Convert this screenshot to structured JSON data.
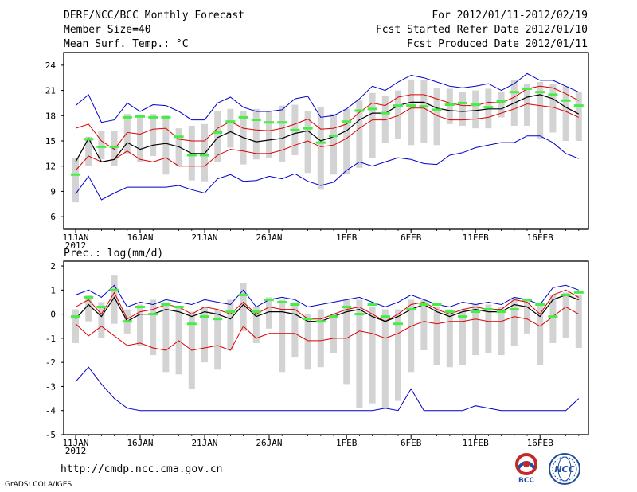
{
  "header": {
    "title": "DERF/NCC/BCC Monthly Forecast",
    "member_size": "Member Size=40",
    "variable": "Mean Surf. Temp.: °C",
    "fcst_period": "For 2012/01/11-2012/02/19",
    "fcst_started": "Fcst Started Refer Date 2012/01/10",
    "fcst_produced": "Fcst Produced Date 2012/01/11"
  },
  "footer": {
    "url": "http://cmdp.ncc.cma.gov.cn",
    "grads_credit": "GrADS: COLA/IGES",
    "logo_bcc_text": "BCC",
    "logo_ncc_text": "NCC"
  },
  "colors": {
    "max_min_line": "#0000cc",
    "spread_line": "#dd0000",
    "mean_line": "#000000",
    "box": "#d3d3d3",
    "ctrl_marker": "#44ee44"
  },
  "chart_data": [
    {
      "type": "line",
      "name": "temperature",
      "ylim": [
        4.5,
        25.5
      ],
      "yticks": [
        6,
        9,
        12,
        15,
        18,
        21,
        24
      ],
      "x_tick_labels": [
        {
          "day": 0,
          "label": "11JAN"
        },
        {
          "day": 5,
          "label": "16JAN"
        },
        {
          "day": 10,
          "label": "21JAN"
        },
        {
          "day": 15,
          "label": "26JAN"
        },
        {
          "day": 21,
          "label": "1FEB"
        },
        {
          "day": 26,
          "label": "6FEB"
        },
        {
          "day": 31,
          "label": "11FEB"
        },
        {
          "day": 36,
          "label": "16FEB"
        }
      ],
      "year_label": "2012",
      "days": 40,
      "max": [
        19.2,
        20.5,
        17.2,
        17.5,
        19.5,
        18.5,
        19.3,
        19.2,
        18.5,
        17.5,
        17.5,
        19.5,
        20.2,
        19.0,
        18.5,
        18.5,
        18.7,
        20.0,
        20.3,
        17.8,
        18.0,
        18.8,
        20.0,
        21.5,
        21.0,
        22.0,
        22.8,
        22.5,
        22.0,
        21.5,
        21.3,
        21.5,
        21.8,
        21.0,
        21.8,
        23.0,
        22.2,
        22.2,
        21.5,
        20.8
      ],
      "upper": [
        16.5,
        17.0,
        15.0,
        14.0,
        16.0,
        15.8,
        16.4,
        16.5,
        15.2,
        15.0,
        15.0,
        16.5,
        17.3,
        16.5,
        16.3,
        16.2,
        16.5,
        17.0,
        17.6,
        16.4,
        16.5,
        17.0,
        18.4,
        19.5,
        19.2,
        20.2,
        20.5,
        20.5,
        20.0,
        19.5,
        19.2,
        19.2,
        19.6,
        19.5,
        20.2,
        21.2,
        21.5,
        21.3,
        20.6,
        19.8
      ],
      "mean": [
        12.5,
        15.3,
        12.5,
        12.8,
        14.8,
        14.0,
        14.5,
        14.7,
        14.3,
        13.5,
        13.5,
        15.4,
        16.1,
        15.4,
        14.9,
        15.1,
        15.3,
        15.9,
        16.2,
        15.0,
        15.5,
        16.2,
        17.5,
        18.3,
        18.3,
        19.2,
        19.6,
        19.6,
        18.9,
        18.6,
        18.5,
        18.6,
        18.8,
        18.8,
        19.5,
        20.2,
        20.5,
        20.0,
        19.0,
        18.2
      ],
      "lower": [
        11.5,
        13.2,
        12.5,
        12.8,
        13.8,
        12.8,
        12.5,
        13.0,
        12.0,
        12.0,
        12.0,
        13.3,
        14.0,
        13.8,
        13.5,
        13.5,
        13.9,
        14.5,
        15.0,
        14.3,
        14.5,
        15.3,
        16.5,
        17.5,
        17.5,
        18.0,
        18.9,
        18.9,
        18.0,
        17.5,
        17.5,
        17.6,
        17.8,
        18.3,
        18.8,
        19.4,
        19.2,
        19.0,
        18.5,
        17.8
      ],
      "min": [
        8.7,
        10.8,
        8.0,
        8.8,
        9.5,
        9.5,
        9.5,
        9.5,
        9.7,
        9.2,
        8.8,
        10.5,
        11.0,
        10.2,
        10.3,
        10.8,
        10.5,
        11.1,
        10.2,
        9.7,
        10.1,
        11.5,
        12.5,
        12.0,
        12.5,
        13.0,
        12.8,
        12.3,
        12.2,
        13.3,
        13.6,
        14.2,
        14.5,
        14.8,
        14.8,
        15.6,
        15.6,
        14.8,
        13.5,
        12.9
      ],
      "box_low": [
        7.7,
        12.0,
        12.8,
        12.0,
        13.5,
        12.5,
        13.2,
        11.0,
        12.0,
        10.3,
        10.2,
        12.5,
        14.2,
        12.2,
        12.8,
        13.0,
        12.5,
        13.3,
        11.2,
        9.2,
        11.0,
        11.0,
        11.8,
        13.0,
        14.8,
        15.2,
        14.5,
        14.8,
        14.5,
        17.0,
        16.8,
        16.5,
        16.5,
        17.8,
        16.8,
        16.8,
        15.2,
        16.0,
        15.0,
        15.0
      ],
      "box_high": [
        13.0,
        15.5,
        16.2,
        16.2,
        18.2,
        18.0,
        18.2,
        18.0,
        16.5,
        16.8,
        17.0,
        18.5,
        18.8,
        18.5,
        18.8,
        18.5,
        19.2,
        19.3,
        18.5,
        19.0,
        18.2,
        18.8,
        19.8,
        20.7,
        20.3,
        21.0,
        22.3,
        22.2,
        21.3,
        21.2,
        20.8,
        21.0,
        21.2,
        20.8,
        22.2,
        21.8,
        22.0,
        21.8,
        21.5,
        20.8
      ],
      "ctrl": [
        11.0,
        15.2,
        14.3,
        14.3,
        17.8,
        17.9,
        17.8,
        17.8,
        15.5,
        13.3,
        13.3,
        16.0,
        17.3,
        17.8,
        17.5,
        17.2,
        17.2,
        16.3,
        16.5,
        14.8,
        15.6,
        17.3,
        18.6,
        18.8,
        18.3,
        19.2,
        19.2,
        19.1,
        18.7,
        19.3,
        19.5,
        19.3,
        19.0,
        19.7,
        20.8,
        21.2,
        20.8,
        20.5,
        19.8,
        19.2
      ]
    },
    {
      "type": "line",
      "name": "precipitation",
      "title": "Prec.: log(mm/d)",
      "ylim": [
        -5,
        2.2
      ],
      "yticks": [
        -5,
        -4,
        -3,
        -2,
        -1,
        0,
        1,
        2
      ],
      "x_tick_labels": [
        {
          "day": 0,
          "label": "11JAN"
        },
        {
          "day": 5,
          "label": "16JAN"
        },
        {
          "day": 10,
          "label": "21JAN"
        },
        {
          "day": 15,
          "label": "26JAN"
        },
        {
          "day": 21,
          "label": "1FEB"
        },
        {
          "day": 26,
          "label": "6FEB"
        },
        {
          "day": 31,
          "label": "11FEB"
        },
        {
          "day": 36,
          "label": "16FEB"
        }
      ],
      "year_label": "2012",
      "days": 40,
      "max": [
        0.8,
        1.0,
        0.7,
        1.2,
        0.3,
        0.5,
        0.4,
        0.6,
        0.5,
        0.4,
        0.6,
        0.5,
        0.4,
        1.0,
        0.3,
        0.6,
        0.7,
        0.6,
        0.3,
        0.4,
        0.5,
        0.6,
        0.7,
        0.5,
        0.3,
        0.5,
        0.8,
        0.6,
        0.4,
        0.3,
        0.5,
        0.4,
        0.5,
        0.4,
        0.7,
        0.6,
        0.4,
        1.1,
        1.2,
        1.0
      ],
      "upper": [
        0.3,
        0.6,
        0.0,
        0.9,
        -0.2,
        0.1,
        0.2,
        0.4,
        0.3,
        0.0,
        0.3,
        0.2,
        0.0,
        0.5,
        0.0,
        0.3,
        0.2,
        0.2,
        -0.2,
        -0.2,
        0.0,
        0.2,
        0.3,
        0.0,
        -0.3,
        0.0,
        0.4,
        0.5,
        0.2,
        0.0,
        0.2,
        0.3,
        0.2,
        0.2,
        0.6,
        0.5,
        0.0,
        0.8,
        1.0,
        0.7
      ],
      "mean": [
        -0.2,
        0.4,
        -0.1,
        0.7,
        -0.3,
        0.0,
        0.0,
        0.2,
        0.1,
        -0.1,
        0.1,
        0.0,
        -0.2,
        0.4,
        -0.1,
        0.1,
        0.1,
        0.0,
        -0.3,
        -0.3,
        -0.1,
        0.1,
        0.2,
        -0.1,
        -0.3,
        -0.1,
        0.2,
        0.4,
        0.1,
        -0.1,
        0.1,
        0.2,
        0.1,
        0.1,
        0.4,
        0.3,
        -0.1,
        0.6,
        0.8,
        0.6
      ],
      "lower": [
        -0.4,
        -0.9,
        -0.5,
        -0.9,
        -1.3,
        -1.2,
        -1.4,
        -1.5,
        -1.1,
        -1.5,
        -1.4,
        -1.3,
        -1.5,
        -0.5,
        -1.0,
        -0.8,
        -0.8,
        -0.8,
        -1.1,
        -1.1,
        -1.0,
        -1.0,
        -0.7,
        -0.8,
        -1.0,
        -0.8,
        -0.5,
        -0.3,
        -0.4,
        -0.3,
        -0.3,
        -0.2,
        -0.3,
        -0.3,
        -0.1,
        -0.2,
        -0.5,
        -0.1,
        0.3,
        0.0
      ],
      "min": [
        -2.8,
        -2.2,
        -2.9,
        -3.5,
        -3.9,
        -4.0,
        -4.0,
        -4.0,
        -4.0,
        -4.0,
        -4.0,
        -4.0,
        -4.0,
        -4.0,
        -4.0,
        -4.0,
        -4.0,
        -4.0,
        -4.0,
        -4.0,
        -4.0,
        -4.0,
        -4.0,
        -4.0,
        -3.9,
        -4.0,
        -3.1,
        -4.0,
        -4.0,
        -4.0,
        -4.0,
        -3.8,
        -3.9,
        -4.0,
        -4.0,
        -4.0,
        -4.0,
        -4.0,
        -4.0,
        -3.5
      ],
      "box_low": [
        -1.2,
        -0.3,
        -1.0,
        -0.4,
        -0.8,
        -1.3,
        -1.7,
        -2.4,
        -2.5,
        -3.1,
        -2.0,
        -2.3,
        -1.5,
        -0.7,
        -1.2,
        -0.6,
        -2.4,
        -1.8,
        -2.3,
        -2.2,
        -1.6,
        -2.9,
        -3.9,
        -3.7,
        -3.9,
        -3.6,
        -2.4,
        -1.5,
        -2.1,
        -2.2,
        -2.1,
        -1.7,
        -1.6,
        -1.7,
        -1.3,
        -0.8,
        -2.1,
        -1.2,
        -1.0,
        -1.4
      ],
      "box_high": [
        0.2,
        0.8,
        0.5,
        1.6,
        0.2,
        0.4,
        0.6,
        0.5,
        0.3,
        0.1,
        0.3,
        0.2,
        0.6,
        1.3,
        0.3,
        0.7,
        0.6,
        0.5,
        0.0,
        0.2,
        0.0,
        0.6,
        0.6,
        0.3,
        0.2,
        0.2,
        0.6,
        0.6,
        0.3,
        0.2,
        0.2,
        0.4,
        0.4,
        0.3,
        0.7,
        0.6,
        0.4,
        0.8,
        0.9,
        0.8
      ],
      "ctrl": [
        -0.1,
        0.7,
        0.3,
        1.0,
        -0.3,
        0.3,
        0.0,
        0.4,
        0.3,
        -0.4,
        -0.1,
        -0.2,
        0.1,
        0.8,
        0.1,
        0.6,
        0.5,
        0.4,
        -0.2,
        -0.3,
        -0.1,
        0.3,
        0.0,
        0.4,
        -0.1,
        -0.4,
        0.2,
        0.4,
        0.4,
        0.1,
        -0.1,
        0.1,
        0.2,
        0.1,
        0.2,
        0.6,
        0.4,
        -0.1,
        0.8,
        0.9
      ]
    }
  ]
}
